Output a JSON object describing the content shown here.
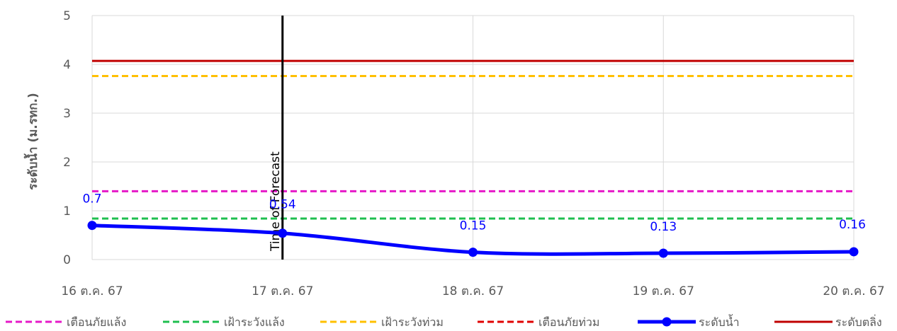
{
  "chart_data": {
    "type": "line",
    "ylabel": "ระดับน้ำ (ม.รทก.)",
    "ylim": [
      0,
      5
    ],
    "yticks": [
      "0",
      "1",
      "2",
      "3",
      "4",
      "5"
    ],
    "categories": [
      "16 ต.ค. 67",
      "17 ต.ค. 67",
      "18 ต.ค. 67",
      "19 ต.ค. 67",
      "20 ต.ค. 67"
    ],
    "grid": true,
    "legend_position": "bottom",
    "vertical_marker": {
      "at": "17 ต.ค. 67",
      "label": "Time of Forecast"
    },
    "series": [
      {
        "name": "เตือนภัยแล้ง",
        "style": "dashed",
        "color": "#e619c8",
        "values": [
          1.4,
          1.4,
          1.4,
          1.4,
          1.4
        ]
      },
      {
        "name": "เฝ้าระวังแล้ง",
        "style": "dashed",
        "color": "#1fbf4f",
        "values": [
          0.84,
          0.84,
          0.84,
          0.84,
          0.84
        ]
      },
      {
        "name": "เฝ้าระวังท่วม",
        "style": "dashed",
        "color": "#ffc000",
        "values": [
          3.76,
          3.76,
          3.76,
          3.76,
          3.76
        ]
      },
      {
        "name": "เตือนภัยท่วม",
        "style": "dashed",
        "color": "#e00000",
        "values": [
          4.07,
          4.07,
          4.07,
          4.07,
          4.07
        ]
      },
      {
        "name": "ระดับน้ำ",
        "style": "line-marker",
        "color": "#0000ff",
        "values": [
          0.7,
          0.54,
          0.15,
          0.13,
          0.16
        ],
        "labels": [
          "0.7",
          "0.54",
          "0.15",
          "0.13",
          "0.16"
        ]
      },
      {
        "name": "ระดับตลิ่ง",
        "style": "solid",
        "color": "#c00000",
        "values": [
          4.07,
          4.07,
          4.07,
          4.07,
          4.07
        ]
      }
    ]
  }
}
